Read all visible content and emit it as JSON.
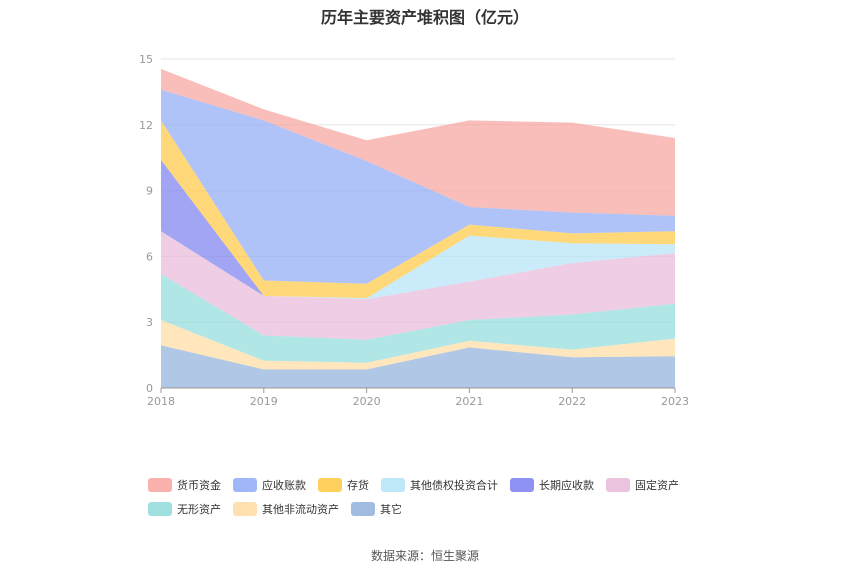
{
  "chart_data": {
    "type": "area",
    "stacked": true,
    "title": "历年主要资产堆积图（亿元）",
    "x": [
      "2018",
      "2019",
      "2020",
      "2021",
      "2022",
      "2023"
    ],
    "ylim": [
      0,
      15
    ],
    "yticks": [
      "0",
      "3",
      "6",
      "9",
      "12",
      "15"
    ],
    "grid": true,
    "legend_position": "bottom",
    "series": [
      {
        "name": "其它",
        "color": "#8fb0dc",
        "values": [
          1.95,
          0.85,
          0.85,
          1.85,
          1.4,
          1.45
        ]
      },
      {
        "name": "其他非流动资产",
        "color": "#ffdba1",
        "values": [
          1.15,
          0.4,
          0.3,
          0.3,
          0.35,
          0.8
        ]
      },
      {
        "name": "无形资产",
        "color": "#8fdbdb",
        "values": [
          2.1,
          1.15,
          1.05,
          0.95,
          1.6,
          1.6
        ]
      },
      {
        "name": "固定资产",
        "color": "#e8b8d8",
        "values": [
          1.95,
          1.8,
          1.85,
          1.75,
          2.35,
          2.3
        ]
      },
      {
        "name": "长期应收款",
        "color": "#7b7ff0",
        "values": [
          3.25,
          0,
          0,
          0,
          0,
          0
        ]
      },
      {
        "name": "其他债权投资合计",
        "color": "#b3e3f7",
        "values": [
          0,
          0,
          0.05,
          2.1,
          0.9,
          0.4
        ]
      },
      {
        "name": "存货",
        "color": "#ffc842",
        "values": [
          1.8,
          0.7,
          0.65,
          0.5,
          0.45,
          0.6
        ]
      },
      {
        "name": "应收账款",
        "color": "#8eaaf7",
        "values": [
          1.4,
          7.3,
          5.6,
          0.8,
          0.95,
          0.7
        ]
      },
      {
        "name": "货币资金",
        "color": "#f7a39c",
        "values": [
          0.95,
          0.5,
          0.95,
          3.95,
          4.1,
          3.55
        ]
      }
    ],
    "legend_rows": [
      [
        "货币资金",
        "应收账款",
        "存货",
        "其他债权投资合计",
        "长期应收款",
        "固定资产"
      ],
      [
        "无形资产",
        "其他非流动资产",
        "其它"
      ]
    ]
  },
  "source": "数据来源：恒生聚源"
}
